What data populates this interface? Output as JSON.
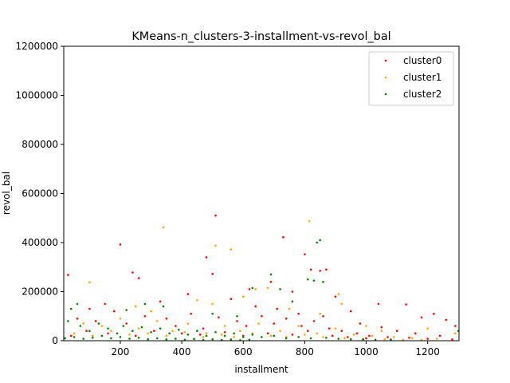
{
  "chart_data": {
    "type": "scatter",
    "title": "KMeans-n_clusters-3-installment-vs-revol_bal",
    "xlabel": "installment",
    "ylabel": "revol_bal",
    "xlim": [
      16,
      1302
    ],
    "ylim": [
      0,
      1200000
    ],
    "x_ticks": [
      200,
      400,
      600,
      800,
      1000,
      1200
    ],
    "x_tick_labels": [
      "200",
      "400",
      "600",
      "800",
      "1000",
      "1200"
    ],
    "y_ticks": [
      0,
      200000,
      400000,
      600000,
      800000,
      1000000,
      1200000
    ],
    "y_tick_labels": [
      "0",
      "200000",
      "400000",
      "600000",
      "800000",
      "1000000",
      "1200000"
    ],
    "grid": false,
    "legend": {
      "position": "top-right",
      "entries": [
        "cluster0",
        "cluster1",
        "cluster2"
      ]
    },
    "colors": {
      "cluster0": "#ff0000",
      "cluster1": "#ffa500",
      "cluster2": "#008000"
    },
    "series": [
      {
        "name": "cluster0",
        "color": "#ff0000",
        "points": [
          [
            30,
            268000
          ],
          [
            200,
            392000
          ],
          [
            510,
            510000
          ],
          [
            730,
            422000
          ],
          [
            800,
            352000
          ],
          [
            480,
            340000
          ],
          [
            240,
            278000
          ],
          [
            260,
            255000
          ],
          [
            500,
            272000
          ],
          [
            820,
            290000
          ],
          [
            850,
            285000
          ],
          [
            870,
            290000
          ],
          [
            1130,
            148000
          ],
          [
            1040,
            150000
          ],
          [
            620,
            210000
          ],
          [
            690,
            240000
          ],
          [
            760,
            200000
          ],
          [
            900,
            180000
          ],
          [
            950,
            120000
          ],
          [
            1180,
            95000
          ],
          [
            1220,
            110000
          ],
          [
            1260,
            85000
          ],
          [
            1290,
            60000
          ],
          [
            100,
            130000
          ],
          [
            150,
            150000
          ],
          [
            330,
            160000
          ],
          [
            420,
            190000
          ],
          [
            560,
            170000
          ],
          [
            640,
            140000
          ],
          [
            710,
            130000
          ],
          [
            780,
            110000
          ],
          [
            860,
            100000
          ],
          [
            980,
            70000
          ],
          [
            1050,
            55000
          ],
          [
            1100,
            40000
          ],
          [
            1160,
            30000
          ],
          [
            1240,
            20000
          ],
          [
            60,
            90000
          ],
          [
            120,
            80000
          ],
          [
            180,
            120000
          ],
          [
            220,
            70000
          ],
          [
            280,
            100000
          ],
          [
            350,
            90000
          ],
          [
            380,
            60000
          ],
          [
            430,
            110000
          ],
          [
            470,
            50000
          ],
          [
            520,
            95000
          ],
          [
            580,
            80000
          ],
          [
            610,
            60000
          ],
          [
            660,
            100000
          ],
          [
            700,
            70000
          ],
          [
            740,
            90000
          ],
          [
            790,
            60000
          ],
          [
            830,
            80000
          ],
          [
            880,
            50000
          ],
          [
            920,
            40000
          ],
          [
            970,
            30000
          ],
          [
            1010,
            20000
          ],
          [
            1070,
            15000
          ],
          [
            1140,
            12000
          ],
          [
            1200,
            8000
          ],
          [
            1280,
            5000
          ],
          [
            40,
            20000
          ],
          [
            90,
            40000
          ],
          [
            160,
            30000
          ],
          [
            250,
            20000
          ],
          [
            310,
            40000
          ],
          [
            400,
            30000
          ],
          [
            460,
            25000
          ],
          [
            540,
            35000
          ],
          [
            600,
            20000
          ],
          [
            680,
            30000
          ],
          [
            760,
            25000
          ],
          [
            810,
            40000
          ],
          [
            890,
            20000
          ],
          [
            940,
            15000
          ],
          [
            1000,
            10000
          ],
          [
            1080,
            5000
          ]
        ]
      },
      {
        "name": "cluster1",
        "color": "#ffa500",
        "points": [
          [
            340,
            462000
          ],
          [
            815,
            487000
          ],
          [
            510,
            388000
          ],
          [
            560,
            372000
          ],
          [
            100,
            238000
          ],
          [
            640,
            210000
          ],
          [
            680,
            215000
          ],
          [
            910,
            190000
          ],
          [
            920,
            150000
          ],
          [
            600,
            180000
          ],
          [
            450,
            165000
          ],
          [
            250,
            140000
          ],
          [
            300,
            120000
          ],
          [
            500,
            150000
          ],
          [
            750,
            130000
          ],
          [
            850,
            110000
          ],
          [
            1000,
            60000
          ],
          [
            1050,
            40000
          ],
          [
            1200,
            50000
          ],
          [
            1290,
            30000
          ],
          [
            80,
            70000
          ],
          [
            140,
            60000
          ],
          [
            200,
            90000
          ],
          [
            260,
            50000
          ],
          [
            320,
            80000
          ],
          [
            370,
            40000
          ],
          [
            420,
            70000
          ],
          [
            480,
            30000
          ],
          [
            540,
            60000
          ],
          [
            590,
            40000
          ],
          [
            650,
            70000
          ],
          [
            720,
            40000
          ],
          [
            780,
            60000
          ],
          [
            840,
            30000
          ],
          [
            900,
            50000
          ],
          [
            960,
            25000
          ],
          [
            1020,
            20000
          ],
          [
            1090,
            15000
          ],
          [
            1150,
            10000
          ],
          [
            1230,
            8000
          ],
          [
            50,
            30000
          ],
          [
            110,
            20000
          ],
          [
            170,
            40000
          ],
          [
            230,
            25000
          ],
          [
            290,
            30000
          ],
          [
            350,
            20000
          ],
          [
            410,
            35000
          ],
          [
            470,
            15000
          ],
          [
            530,
            25000
          ],
          [
            570,
            15000
          ],
          [
            630,
            30000
          ],
          [
            690,
            20000
          ],
          [
            740,
            15000
          ],
          [
            800,
            25000
          ],
          [
            860,
            15000
          ],
          [
            930,
            10000
          ],
          [
            990,
            8000
          ],
          [
            1060,
            6000
          ],
          [
            1120,
            4000
          ],
          [
            1180,
            3000
          ]
        ]
      },
      {
        "name": "cluster2",
        "color": "#008000",
        "points": [
          [
            850,
            410000
          ],
          [
            840,
            400000
          ],
          [
            810,
            250000
          ],
          [
            830,
            245000
          ],
          [
            860,
            240000
          ],
          [
            690,
            270000
          ],
          [
            760,
            160000
          ],
          [
            720,
            210000
          ],
          [
            630,
            215000
          ],
          [
            280,
            150000
          ],
          [
            40,
            130000
          ],
          [
            60,
            150000
          ],
          [
            220,
            125000
          ],
          [
            340,
            140000
          ],
          [
            500,
            110000
          ],
          [
            580,
            100000
          ],
          [
            1300,
            40000
          ],
          [
            30,
            80000
          ],
          [
            70,
            60000
          ],
          [
            100,
            40000
          ],
          [
            130,
            70000
          ],
          [
            160,
            50000
          ],
          [
            190,
            30000
          ],
          [
            210,
            60000
          ],
          [
            240,
            40000
          ],
          [
            270,
            55000
          ],
          [
            300,
            35000
          ],
          [
            330,
            50000
          ],
          [
            360,
            30000
          ],
          [
            390,
            45000
          ],
          [
            420,
            25000
          ],
          [
            450,
            40000
          ],
          [
            480,
            20000
          ],
          [
            510,
            35000
          ],
          [
            540,
            20000
          ],
          [
            570,
            30000
          ],
          [
            600,
            15000
          ],
          [
            630,
            25000
          ],
          [
            660,
            15000
          ],
          [
            700,
            20000
          ],
          [
            740,
            10000
          ],
          [
            780,
            15000
          ],
          [
            820,
            10000
          ],
          [
            870,
            12000
          ],
          [
            910,
            8000
          ],
          [
            950,
            6000
          ],
          [
            990,
            5000
          ],
          [
            1030,
            4000
          ],
          [
            1080,
            3000
          ],
          [
            20,
            10000
          ],
          [
            50,
            15000
          ],
          [
            80,
            8000
          ],
          [
            110,
            12000
          ],
          [
            140,
            20000
          ],
          [
            170,
            10000
          ],
          [
            200,
            15000
          ],
          [
            230,
            8000
          ],
          [
            260,
            12000
          ],
          [
            290,
            6000
          ],
          [
            320,
            10000
          ],
          [
            350,
            5000
          ],
          [
            380,
            8000
          ],
          [
            410,
            4000
          ],
          [
            440,
            7000
          ],
          [
            470,
            3000
          ],
          [
            500,
            6000
          ],
          [
            530,
            3000
          ],
          [
            560,
            5000
          ],
          [
            590,
            2000
          ],
          [
            620,
            4000
          ]
        ]
      }
    ]
  }
}
